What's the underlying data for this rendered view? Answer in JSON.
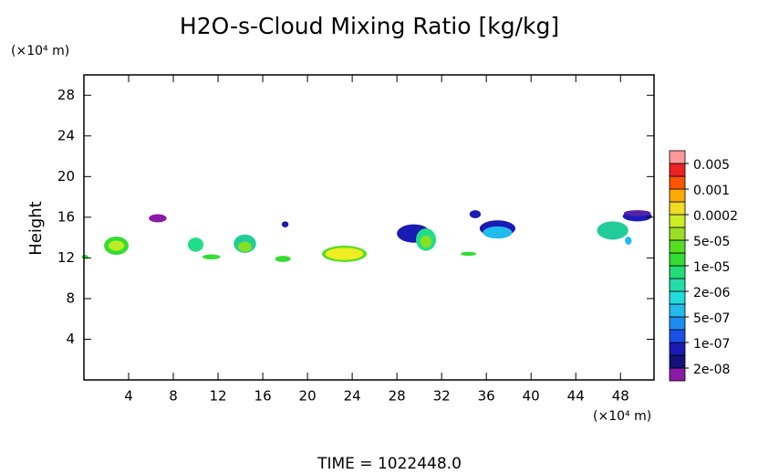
{
  "chart_data": {
    "type": "contour",
    "title": "H2O-s-Cloud Mixing Ratio [kg/kg]",
    "y_label": "Height",
    "x_unit": "(×10⁴ m)",
    "y_unit": "(×10⁴ m)",
    "footer": "TIME = 1022448.0",
    "xlim": [
      0,
      51
    ],
    "ylim": [
      0,
      30
    ],
    "xticks": [
      4,
      8,
      12,
      16,
      20,
      24,
      28,
      32,
      36,
      40,
      44,
      48
    ],
    "yticks": [
      4,
      8,
      12,
      16,
      20,
      24,
      28
    ],
    "colorbar": {
      "colors": [
        "#8a1aa8",
        "#12127a",
        "#1a1ab4",
        "#1a50e6",
        "#1a8ef0",
        "#22bbee",
        "#22dddd",
        "#22ddaa",
        "#22dd77",
        "#33dd33",
        "#55dd22",
        "#99e022",
        "#ccee22",
        "#eedd22",
        "#ffaa00",
        "#ff5500",
        "#ee2222",
        "#ff9999"
      ],
      "levels": [
        {
          "value": 2e-08,
          "label": "2e-08"
        },
        {
          "value": 1e-07,
          "label": "1e-07"
        },
        {
          "value": 5e-07,
          "label": "5e-07"
        },
        {
          "value": 2e-06,
          "label": "2e-06"
        },
        {
          "value": 1e-05,
          "label": "1e-05"
        },
        {
          "value": 5e-05,
          "label": "5e-05"
        },
        0.0002,
        0.001,
        0.005
      ]
    },
    "patches": [
      {
        "x": 2.9,
        "y": 13.2,
        "rx": 1.1,
        "ry": 0.9,
        "color": "#33dd33"
      },
      {
        "x": 2.9,
        "y": 13.2,
        "rx": 0.7,
        "ry": 0.5,
        "color": "#bbee22"
      },
      {
        "x": 0.1,
        "y": 12.1,
        "rx": 0.3,
        "ry": 0.2,
        "color": "#33dd33"
      },
      {
        "x": 6.6,
        "y": 15.9,
        "rx": 0.8,
        "ry": 0.4,
        "color": "#8a1aa8"
      },
      {
        "x": 10.0,
        "y": 13.3,
        "rx": 0.7,
        "ry": 0.7,
        "color": "#22dd88"
      },
      {
        "x": 11.4,
        "y": 12.1,
        "rx": 0.8,
        "ry": 0.25,
        "color": "#33dd33"
      },
      {
        "x": 14.4,
        "y": 13.4,
        "rx": 1.0,
        "ry": 0.9,
        "color": "#22cc99"
      },
      {
        "x": 14.4,
        "y": 13.1,
        "rx": 0.6,
        "ry": 0.5,
        "color": "#88e022"
      },
      {
        "x": 18.0,
        "y": 15.3,
        "rx": 0.3,
        "ry": 0.3,
        "color": "#1a1ab4"
      },
      {
        "x": 17.8,
        "y": 11.9,
        "rx": 0.7,
        "ry": 0.3,
        "color": "#33dd33"
      },
      {
        "x": 23.3,
        "y": 12.4,
        "rx": 2.0,
        "ry": 0.8,
        "color": "#55dd22"
      },
      {
        "x": 23.3,
        "y": 12.4,
        "rx": 1.7,
        "ry": 0.6,
        "color": "#eeee22"
      },
      {
        "x": 29.5,
        "y": 14.4,
        "rx": 1.5,
        "ry": 0.9,
        "color": "#1a1ab4"
      },
      {
        "x": 30.6,
        "y": 13.8,
        "rx": 0.9,
        "ry": 1.1,
        "color": "#22dd88"
      },
      {
        "x": 30.6,
        "y": 13.6,
        "rx": 0.5,
        "ry": 0.6,
        "color": "#88e022"
      },
      {
        "x": 35.0,
        "y": 16.3,
        "rx": 0.5,
        "ry": 0.4,
        "color": "#1a1ab4"
      },
      {
        "x": 34.4,
        "y": 12.4,
        "rx": 0.7,
        "ry": 0.2,
        "color": "#33dd33"
      },
      {
        "x": 37.0,
        "y": 14.9,
        "rx": 1.6,
        "ry": 0.8,
        "color": "#1a1ab4"
      },
      {
        "x": 37.0,
        "y": 14.5,
        "rx": 1.3,
        "ry": 0.6,
        "color": "#22bbee"
      },
      {
        "x": 47.3,
        "y": 14.7,
        "rx": 1.4,
        "ry": 0.9,
        "color": "#22cc99"
      },
      {
        "x": 49.5,
        "y": 16.1,
        "rx": 1.3,
        "ry": 0.5,
        "color": "#1a1ab4"
      },
      {
        "x": 49.5,
        "y": 16.4,
        "rx": 1.2,
        "ry": 0.3,
        "color": "#5522aa"
      },
      {
        "x": 48.7,
        "y": 13.7,
        "rx": 0.3,
        "ry": 0.4,
        "color": "#22bbee"
      }
    ]
  }
}
